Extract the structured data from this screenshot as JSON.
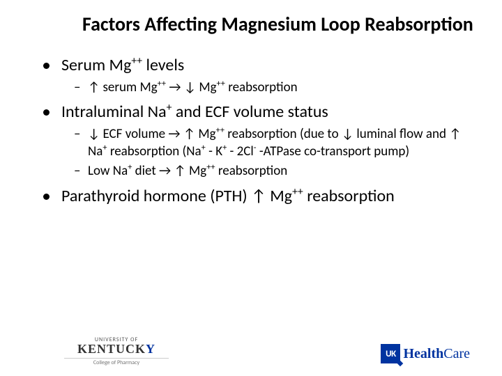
{
  "title": "Factors Affecting Magnesium Loop Reabsorption",
  "bullets": {
    "b1": {
      "pre": "Serum Mg",
      "sup": "++",
      "post": " levels"
    },
    "b1s1": {
      "pre": "↑ serum Mg",
      "sup1": "++",
      "mid": " → ↓ Mg",
      "sup2": "++",
      "post": " reabsorption"
    },
    "b2": {
      "pre": "Intraluminal Na",
      "sup": "+",
      "post": " and ECF volume status"
    },
    "b2s1": {
      "t1": "↓ ECF volume → ↑ Mg",
      "s1": "++",
      "t2": " reabsorption (due to ↓ luminal flow and ↑ Na",
      "s2": "+",
      "t3": " reabsorption (Na",
      "s3": "+",
      "t4": " - K",
      "s4": "+",
      "t5": " - 2Cl",
      "s5": "-",
      "t6": " -ATPase co-transport pump)"
    },
    "b2s2": {
      "t1": "Low Na",
      "s1": "+",
      "t2": " diet → ↑ Mg",
      "s2": "++",
      "t3": " reabsorption"
    },
    "b3": {
      "t1": "Parathyroid hormone (PTH) ↑ Mg",
      "s1": "++",
      "t2": " reabsorption"
    }
  },
  "footer": {
    "ky_uni": "UNIVERSITY OF",
    "ky_black": "KENTUCK",
    "ky_blue": "Y",
    "ky_cop": "College of Pharmacy",
    "uk_badge": "UK",
    "hc_bold": "Health",
    "hc_rest": "Care"
  },
  "colors": {
    "text": "#000000",
    "brand_blue": "#0033a0",
    "background": "#ffffff"
  }
}
